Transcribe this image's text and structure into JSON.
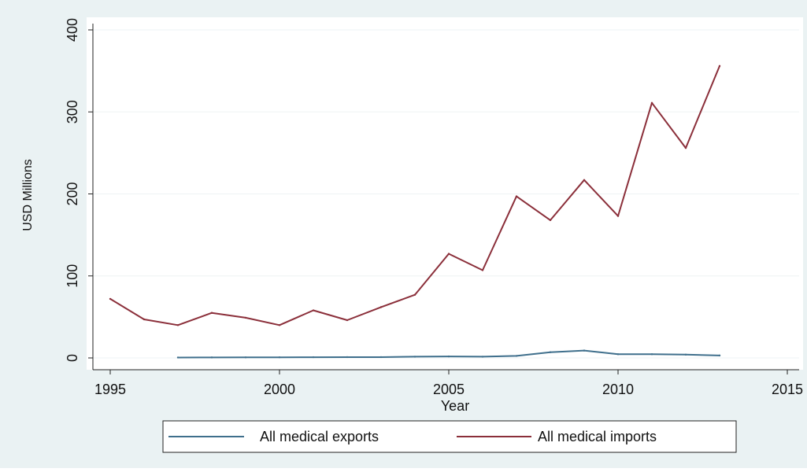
{
  "chart_data": {
    "type": "line",
    "title": "",
    "xlabel": "Year",
    "ylabel": "USD Millions",
    "xlim": [
      1995,
      2015
    ],
    "ylim": [
      0,
      400
    ],
    "xticks": [
      1995,
      2000,
      2005,
      2010,
      2015
    ],
    "yticks": [
      0,
      100,
      200,
      300,
      400
    ],
    "grid": true,
    "legend_position": "bottom",
    "series": [
      {
        "name": "All medical exports",
        "color": "#3f6f8c",
        "x": [
          1997,
          1998,
          1999,
          2000,
          2001,
          2002,
          2003,
          2004,
          2005,
          2006,
          2007,
          2008,
          2009,
          2010,
          2011,
          2012,
          2013
        ],
        "values": [
          0.5,
          0.6,
          0.7,
          0.8,
          0.9,
          1.0,
          1.0,
          1.5,
          1.8,
          1.5,
          2.5,
          7,
          9,
          4.5,
          4.5,
          4,
          3
        ]
      },
      {
        "name": "All medical imports",
        "color": "#8b2f3a",
        "x": [
          1995,
          1996,
          1997,
          1998,
          1999,
          2000,
          2001,
          2002,
          2003,
          2004,
          2005,
          2006,
          2007,
          2008,
          2009,
          2010,
          2011,
          2012,
          2013
        ],
        "values": [
          72,
          47,
          40,
          55,
          49,
          40,
          58,
          46,
          62,
          77,
          127,
          107,
          197,
          168,
          217,
          173,
          311,
          256,
          356
        ]
      }
    ]
  }
}
